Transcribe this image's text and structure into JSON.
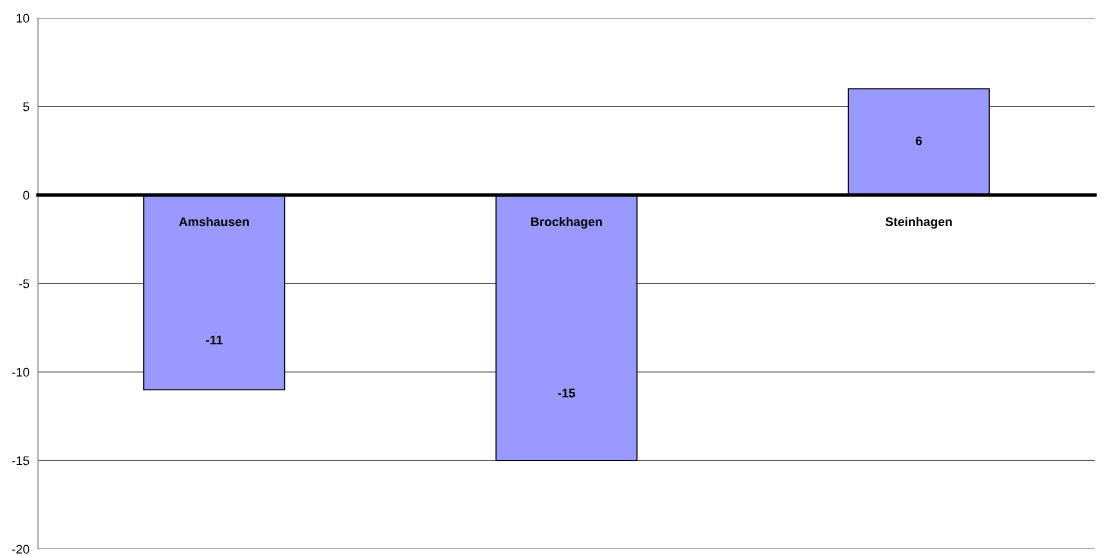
{
  "chart_data": {
    "type": "bar",
    "categories": [
      "Amshausen",
      "Brockhagen",
      "Steinhagen"
    ],
    "values": [
      -11,
      -15,
      6
    ],
    "color": "#9999ff",
    "ylim": [
      -20,
      10
    ],
    "yticks": [
      -20,
      -15,
      -10,
      -5,
      0,
      5,
      10
    ],
    "grid": "y",
    "data_labels": true
  }
}
